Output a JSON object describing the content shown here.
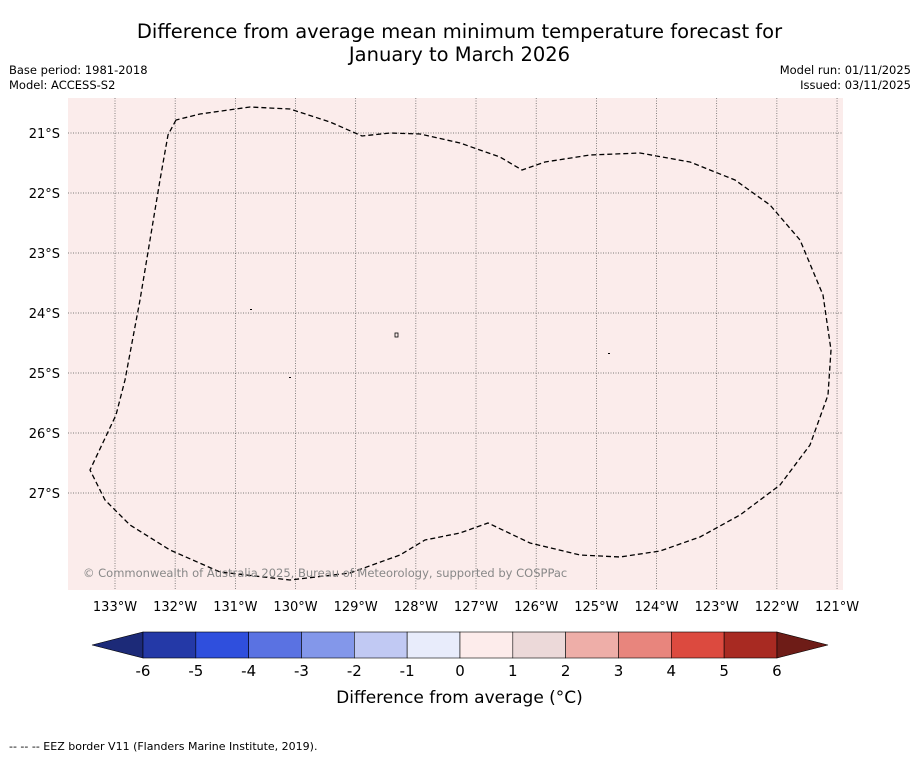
{
  "title_line1": "Difference from average mean minimum temperature forecast for",
  "title_line2": "January to March 2026",
  "base_period": "Base period: 1981-2018",
  "model": "Model: ACCESS-S2",
  "model_run": "Model run: 01/11/2025",
  "issued": "Issued: 03/11/2025",
  "copyright": "© Commonwealth of Australia 2025, Bureau of Meteorology, supported by COSPPac",
  "map": {
    "fill_color": "#fbeceb",
    "lon_ticks": [
      "133°W",
      "132°W",
      "131°W",
      "130°W",
      "129°W",
      "128°W",
      "127°W",
      "126°W",
      "125°W",
      "124°W",
      "123°W",
      "122°W",
      "121°W"
    ],
    "lat_ticks": [
      "21°S",
      "22°S",
      "23°S",
      "24°S",
      "25°S",
      "26°S",
      "27°S"
    ]
  },
  "colorbar": {
    "label": "Difference from average (°C)",
    "ticks": [
      "-6",
      "-5",
      "-4",
      "-3",
      "-2",
      "-1",
      "0",
      "1",
      "2",
      "3",
      "4",
      "5",
      "6"
    ],
    "colors": [
      "#2439a7",
      "#2f4fdd",
      "#5a72e2",
      "#8397ea",
      "#c1c9f3",
      "#e8ecfb",
      "#fdeceb",
      "#ecd9d9",
      "#eeaea8",
      "#e8857d",
      "#dc4a3f",
      "#a82a22"
    ],
    "under_color": "#1c2a78",
    "over_color": "#6e1c17"
  },
  "footer": "-- -- -- EEZ border V11 (Flanders Marine Institute, 2019)."
}
